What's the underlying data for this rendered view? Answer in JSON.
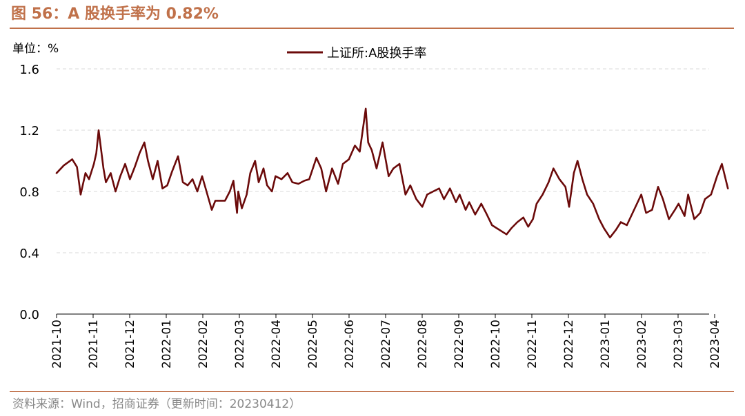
{
  "figure": {
    "title": "图 56：A 股换手率为 0.82%",
    "unit_label": "单位：%",
    "source": "资料来源：Wind，招商证券（更新时间：20230412）",
    "colors": {
      "accent": "#C0714A",
      "line": "#6B0A0A",
      "grid": "#D9D9D9",
      "axis": "#000000"
    }
  },
  "chart_data": {
    "type": "line",
    "title": "",
    "xlabel": "",
    "ylabel": "%",
    "ylim": [
      0,
      1.6
    ],
    "yticks": [
      "0.0",
      "0.4",
      "0.8",
      "1.2",
      "1.6"
    ],
    "xticks": [
      "2021-10",
      "2021-11",
      "2021-12",
      "2022-01",
      "2022-02",
      "2022-03",
      "2022-04",
      "2022-05",
      "2022-06",
      "2022-07",
      "2022-08",
      "2022-09",
      "2022-10",
      "2022-11",
      "2022-12",
      "2023-01",
      "2023-02",
      "2023-03",
      "2023-04"
    ],
    "grid": "horizontal dashed",
    "legend_position": "top-center",
    "series": [
      {
        "name": "上证所:A股换手率",
        "x": [
          "2021-10-01",
          "2021-10-07",
          "2021-10-14",
          "2021-10-18",
          "2021-10-21",
          "2021-10-25",
          "2021-10-28",
          "2021-11-01",
          "2021-11-03",
          "2021-11-05",
          "2021-11-09",
          "2021-11-11",
          "2021-11-15",
          "2021-11-19",
          "2021-11-23",
          "2021-11-27",
          "2021-12-01",
          "2021-12-05",
          "2021-12-09",
          "2021-12-13",
          "2021-12-16",
          "2021-12-20",
          "2021-12-24",
          "2021-12-28",
          "2022-01-01",
          "2022-01-05",
          "2022-01-10",
          "2022-01-14",
          "2022-01-18",
          "2022-01-22",
          "2022-01-26",
          "2022-01-30",
          "2022-02-07",
          "2022-02-10",
          "2022-02-15",
          "2022-02-18",
          "2022-02-22",
          "2022-02-25",
          "2022-02-28",
          "2022-03-01",
          "2022-03-04",
          "2022-03-08",
          "2022-03-11",
          "2022-03-15",
          "2022-03-18",
          "2022-03-22",
          "2022-03-25",
          "2022-03-29",
          "2022-04-01",
          "2022-04-06",
          "2022-04-11",
          "2022-04-15",
          "2022-04-20",
          "2022-04-25",
          "2022-04-29",
          "2022-05-05",
          "2022-05-09",
          "2022-05-13",
          "2022-05-18",
          "2022-05-23",
          "2022-05-27",
          "2022-06-01",
          "2022-06-06",
          "2022-06-10",
          "2022-06-15",
          "2022-06-17",
          "2022-06-20",
          "2022-06-24",
          "2022-06-29",
          "2022-07-04",
          "2022-07-08",
          "2022-07-13",
          "2022-07-18",
          "2022-07-22",
          "2022-07-27",
          "2022-08-01",
          "2022-08-05",
          "2022-08-10",
          "2022-08-15",
          "2022-08-19",
          "2022-08-24",
          "2022-08-29",
          "2022-09-01",
          "2022-09-06",
          "2022-09-09",
          "2022-09-14",
          "2022-09-19",
          "2022-09-23",
          "2022-09-28",
          "2022-10-10",
          "2022-10-14",
          "2022-10-19",
          "2022-10-24",
          "2022-10-28",
          "2022-11-01",
          "2022-11-04",
          "2022-11-09",
          "2022-11-14",
          "2022-11-18",
          "2022-11-23",
          "2022-11-28",
          "2022-12-01",
          "2022-12-05",
          "2022-12-08",
          "2022-12-12",
          "2022-12-16",
          "2022-12-21",
          "2022-12-26",
          "2022-12-30",
          "2023-01-04",
          "2023-01-09",
          "2023-01-13",
          "2023-01-18",
          "2023-01-30",
          "2023-02-03",
          "2023-02-08",
          "2023-02-13",
          "2023-02-17",
          "2023-02-22",
          "2023-02-27",
          "2023-03-02",
          "2023-03-07",
          "2023-03-10",
          "2023-03-15",
          "2023-03-20",
          "2023-03-24",
          "2023-03-29",
          "2023-04-03",
          "2023-04-07",
          "2023-04-12"
        ],
        "values": [
          0.92,
          0.97,
          1.01,
          0.96,
          0.78,
          0.92,
          0.88,
          0.98,
          1.05,
          1.2,
          0.95,
          0.86,
          0.92,
          0.8,
          0.9,
          0.98,
          0.88,
          0.96,
          1.05,
          1.12,
          1.0,
          0.88,
          1.0,
          0.82,
          0.84,
          0.93,
          1.03,
          0.86,
          0.84,
          0.88,
          0.8,
          0.9,
          0.68,
          0.74,
          0.74,
          0.74,
          0.8,
          0.87,
          0.66,
          0.8,
          0.69,
          0.78,
          0.92,
          1.0,
          0.86,
          0.95,
          0.84,
          0.8,
          0.9,
          0.88,
          0.92,
          0.86,
          0.85,
          0.87,
          0.88,
          1.02,
          0.95,
          0.8,
          0.95,
          0.85,
          0.98,
          1.01,
          1.1,
          1.06,
          1.34,
          1.12,
          1.07,
          0.95,
          1.12,
          0.9,
          0.95,
          0.98,
          0.78,
          0.84,
          0.75,
          0.7,
          0.78,
          0.8,
          0.82,
          0.75,
          0.82,
          0.73,
          0.78,
          0.68,
          0.73,
          0.65,
          0.72,
          0.66,
          0.58,
          0.52,
          0.56,
          0.6,
          0.63,
          0.57,
          0.62,
          0.72,
          0.78,
          0.86,
          0.95,
          0.88,
          0.83,
          0.7,
          0.92,
          1.0,
          0.88,
          0.78,
          0.72,
          0.62,
          0.56,
          0.5,
          0.55,
          0.6,
          0.58,
          0.78,
          0.66,
          0.68,
          0.83,
          0.75,
          0.62,
          0.68,
          0.72,
          0.64,
          0.78,
          0.62,
          0.66,
          0.75,
          0.78,
          0.9,
          0.98,
          0.82
        ]
      }
    ]
  }
}
